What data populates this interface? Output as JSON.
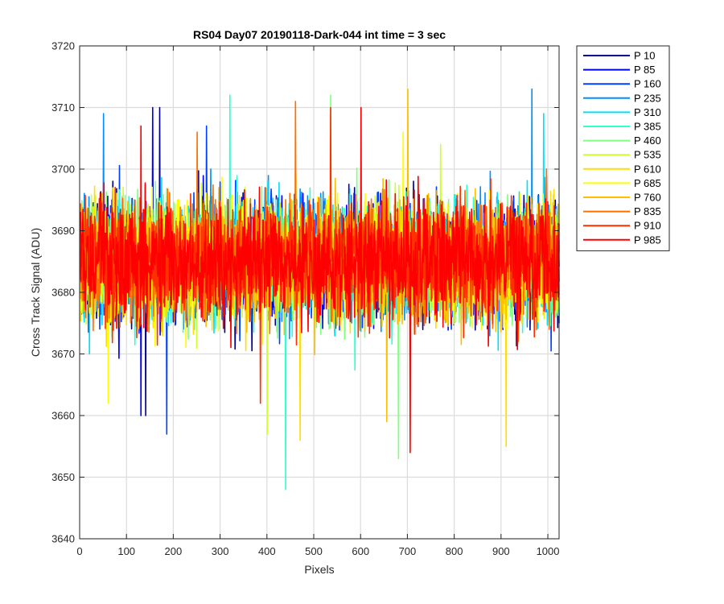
{
  "chart_data": {
    "type": "line",
    "title": "RS04 Day07 20190118-Dark-044 int time = 3 sec",
    "xlabel": "Pixels",
    "ylabel": "Cross Track Signal (ADU)",
    "xlim": [
      0,
      1024
    ],
    "ylim": [
      3640,
      3720
    ],
    "xticks": [
      0,
      100,
      200,
      300,
      400,
      500,
      600,
      700,
      800,
      900,
      1000
    ],
    "yticks": [
      3640,
      3650,
      3660,
      3670,
      3680,
      3690,
      3700,
      3710,
      3720
    ],
    "grid": true,
    "legend_position": "outside-right",
    "series": [
      {
        "name": "P 10",
        "color": "#00008f",
        "mean": 3685,
        "spread": 7.5,
        "peaks": [
          [
            170,
            3710
          ],
          [
            140,
            3660
          ]
        ]
      },
      {
        "name": "P 85",
        "color": "#0000ef",
        "mean": 3685,
        "spread": 7.5,
        "peaks": [
          [
            155,
            3710
          ],
          [
            130,
            3660
          ]
        ]
      },
      {
        "name": "P 160",
        "color": "#0040ff",
        "mean": 3685,
        "spread": 7.5,
        "peaks": [
          [
            185,
            3657
          ],
          [
            270,
            3707
          ]
        ]
      },
      {
        "name": "P 235",
        "color": "#0090ff",
        "mean": 3685,
        "spread": 7.5,
        "peaks": [
          [
            50,
            3709
          ],
          [
            965,
            3713
          ]
        ]
      },
      {
        "name": "P 310",
        "color": "#00dfff",
        "mean": 3685,
        "spread": 7.5,
        "peaks": [
          [
            990,
            3709
          ],
          [
            20,
            3670
          ]
        ]
      },
      {
        "name": "P 385",
        "color": "#30ffcf",
        "mean": 3685,
        "spread": 7.5,
        "peaks": [
          [
            320,
            3712
          ],
          [
            439,
            3648
          ]
        ]
      },
      {
        "name": "P 460",
        "color": "#80ff80",
        "mean": 3685,
        "spread": 7.5,
        "peaks": [
          [
            680,
            3653
          ],
          [
            535,
            3712
          ]
        ]
      },
      {
        "name": "P 535",
        "color": "#cfff30",
        "mean": 3685,
        "spread": 7.5,
        "peaks": [
          [
            400,
            3657
          ],
          [
            770,
            3704
          ]
        ]
      },
      {
        "name": "P 610",
        "color": "#ffdf00",
        "mean": 3685,
        "spread": 7.5,
        "peaks": [
          [
            910,
            3655
          ],
          [
            470,
            3656
          ]
        ]
      },
      {
        "name": "P 685",
        "color": "#ffff00",
        "mean": 3685,
        "spread": 7.5,
        "peaks": [
          [
            60,
            3662
          ],
          [
            690,
            3706
          ]
        ]
      },
      {
        "name": "P 760",
        "color": "#ffbf00",
        "mean": 3685,
        "spread": 7.5,
        "peaks": [
          [
            700,
            3713
          ],
          [
            655,
            3659
          ]
        ]
      },
      {
        "name": "P 835",
        "color": "#ff7000",
        "mean": 3685,
        "spread": 7.5,
        "peaks": [
          [
            460,
            3711
          ],
          [
            250,
            3706
          ]
        ]
      },
      {
        "name": "P 910",
        "color": "#ff3000",
        "mean": 3685,
        "spread": 7.5,
        "peaks": [
          [
            535,
            3710
          ],
          [
            385,
            3662
          ]
        ]
      },
      {
        "name": "P 985",
        "color": "#ff0000",
        "mean": 3685,
        "spread": 7.5,
        "peaks": [
          [
            600,
            3710
          ],
          [
            705,
            3654
          ],
          [
            130,
            3707
          ]
        ]
      }
    ]
  }
}
